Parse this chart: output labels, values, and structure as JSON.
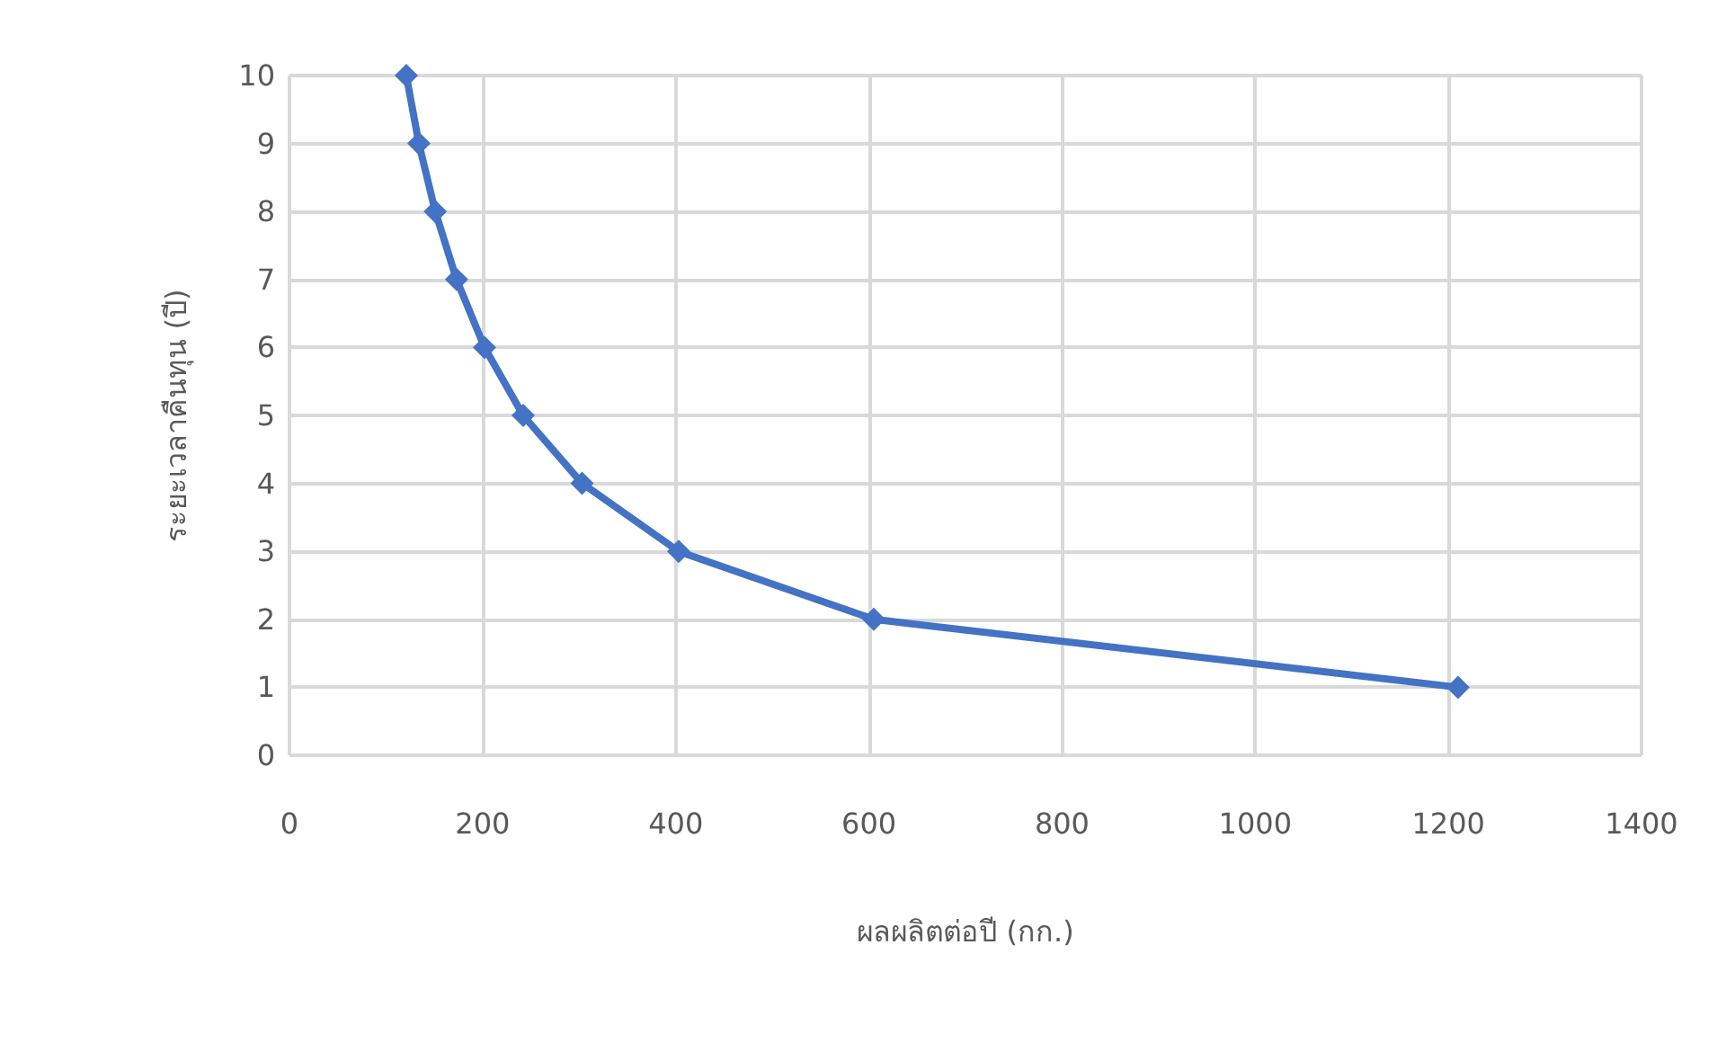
{
  "chart_data": {
    "type": "line",
    "xlabel": "ผลผลิตต่อปี (กก.)",
    "ylabel": "ระยะเวลาคืนทุน (ปี)",
    "x": [
      121,
      134,
      151,
      173,
      202,
      242,
      303,
      403,
      605,
      1210
    ],
    "series": [
      {
        "color": "#4472c4",
        "values": [
          10,
          9,
          8,
          7,
          6,
          5,
          4,
          3,
          2,
          1
        ]
      }
    ],
    "xlim": [
      0,
      1400
    ],
    "xticks": [
      0,
      200,
      400,
      600,
      800,
      1000,
      1200,
      1400
    ],
    "ylim": [
      0,
      10
    ],
    "yticks": [
      0,
      1,
      2,
      3,
      4,
      5,
      6,
      7,
      8,
      9,
      10
    ],
    "grid": true,
    "marker": "diamond",
    "line_style": "solid"
  }
}
